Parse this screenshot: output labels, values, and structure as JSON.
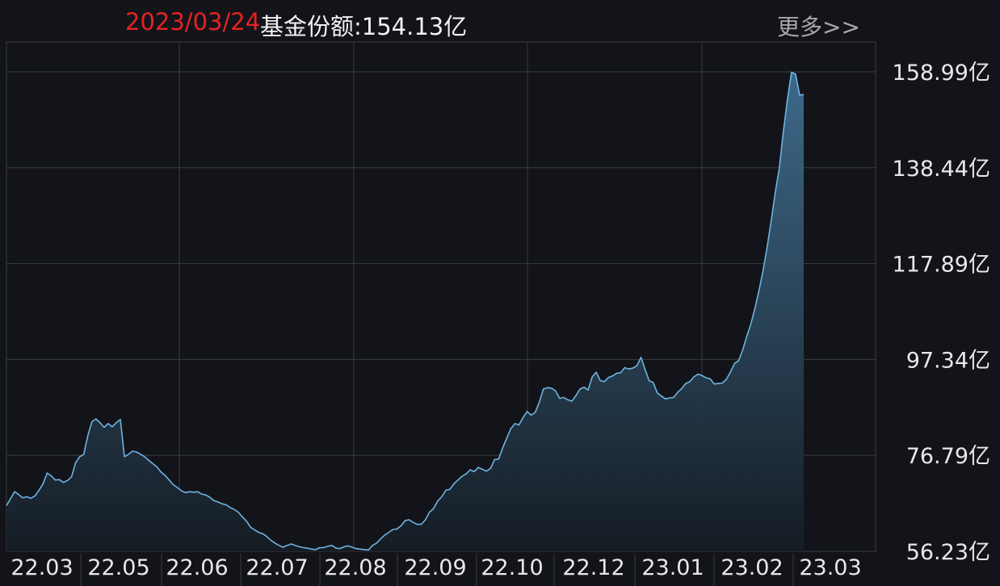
{
  "header": {
    "date": "2023/03/24",
    "text": "基金份额:154.13亿",
    "more_label": "更多>>"
  },
  "colors": {
    "background": "#131419",
    "grid": "#3a3d45",
    "line": "#6fb3e0",
    "fill_top": "#3f6d8f",
    "fill_bottom": "#151c24",
    "date": "#e62222"
  },
  "chart_data": {
    "type": "area",
    "y_tick_labels": [
      "158.99亿",
      "138.44亿",
      "117.89亿",
      "97.34亿",
      "76.79亿",
      "56.23亿"
    ],
    "y_ticks": [
      158.99,
      138.44,
      117.89,
      97.34,
      76.79,
      56.23
    ],
    "x_tick_labels": [
      "22.03",
      "22.05",
      "22.06",
      "22.07",
      "22.08",
      "22.09",
      "22.10",
      "22.12",
      "23.01",
      "23.02",
      "23.03"
    ],
    "unit": "亿",
    "grid": true,
    "series": [
      {
        "values": [
          66.0,
          67.5,
          69.0,
          68.4,
          67.7,
          67.9,
          67.6,
          68.1,
          69.3,
          70.7,
          73.0,
          72.4,
          71.5,
          71.6,
          71.0,
          71.4,
          72.2,
          75.2,
          76.5,
          77.0,
          81.0,
          84.0,
          84.6,
          83.8,
          82.8,
          83.6,
          82.9,
          83.8,
          84.5,
          76.5,
          77.0,
          77.7,
          77.5,
          77.0,
          76.5,
          75.7,
          75.0,
          74.3,
          73.2,
          72.5,
          71.5,
          70.5,
          69.9,
          69.2,
          68.8,
          69.0,
          68.9,
          69.0,
          68.5,
          68.3,
          67.8,
          67.1,
          66.8,
          66.4,
          66.2,
          65.6,
          65.2,
          64.6,
          63.6,
          62.7,
          61.4,
          60.8,
          60.3,
          60.0,
          59.4,
          58.6,
          58.0,
          57.5,
          57.1,
          57.5,
          57.8,
          57.5,
          57.2,
          57.0,
          56.9,
          56.7,
          56.6,
          57.0,
          57.0,
          57.3,
          57.5,
          56.9,
          56.8,
          57.2,
          57.4,
          57.1,
          56.8,
          56.7,
          56.6,
          56.5,
          57.5,
          58.0,
          58.9,
          59.7,
          60.3,
          60.9,
          61.0,
          61.7,
          62.8,
          63.0,
          62.4,
          62.0,
          62.0,
          63.0,
          64.6,
          65.4,
          67.0,
          67.9,
          69.3,
          69.5,
          70.7,
          71.5,
          72.3,
          72.8,
          73.7,
          73.3,
          74.2,
          73.8,
          73.4,
          74.0,
          75.9,
          76.0,
          78.4,
          80.5,
          82.5,
          83.6,
          83.3,
          84.9,
          86.2,
          85.4,
          86.0,
          88.2,
          91.0,
          91.3,
          91.2,
          90.6,
          89.0,
          89.2,
          88.7,
          88.4,
          89.6,
          91.0,
          91.4,
          90.8,
          93.6,
          94.6,
          92.8,
          92.6,
          93.5,
          93.8,
          94.4,
          94.5,
          95.6,
          95.3,
          95.5,
          96.0,
          97.8,
          95.2,
          92.8,
          92.4,
          90.2,
          89.5,
          88.9,
          89.1,
          89.2,
          90.3,
          91.1,
          92.2,
          92.6,
          93.6,
          94.2,
          93.9,
          93.4,
          93.2,
          92.1,
          92.2,
          92.3,
          93.1,
          94.7,
          96.5,
          97.1,
          99.4,
          102.3,
          104.9,
          108.3,
          112.1,
          116.3,
          121.4,
          127.0,
          133.2,
          138.4,
          146.2,
          153.1,
          158.9,
          158.5,
          154.0,
          154.13
        ]
      }
    ]
  }
}
